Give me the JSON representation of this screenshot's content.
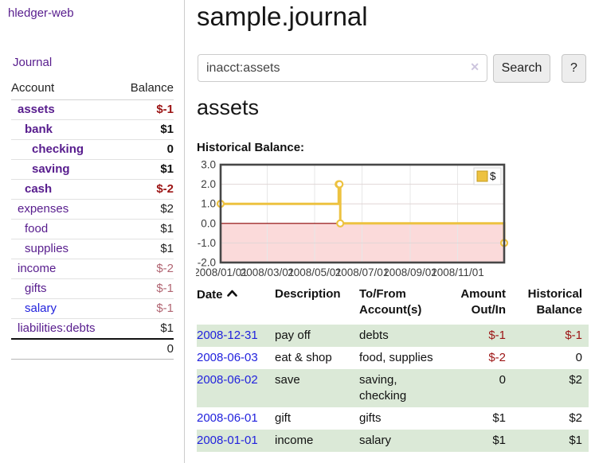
{
  "app": {
    "brand": "hledger-web"
  },
  "nav": {
    "journal_label": "Journal"
  },
  "sidebar": {
    "headers": {
      "account": "Account",
      "balance": "Balance"
    },
    "accounts": [
      {
        "name": "assets",
        "level": 1,
        "bold": true,
        "balance": "$-1",
        "balance_class": "neg-strong"
      },
      {
        "name": "bank",
        "level": 2,
        "bold": true,
        "balance": "$1",
        "balance_class": ""
      },
      {
        "name": "checking",
        "level": 3,
        "bold": true,
        "balance": "0",
        "balance_class": ""
      },
      {
        "name": "saving",
        "level": 3,
        "bold": true,
        "balance": "$1",
        "balance_class": ""
      },
      {
        "name": "cash",
        "level": 2,
        "bold": true,
        "balance": "$-2",
        "balance_class": "neg-strong"
      },
      {
        "name": "expenses",
        "level": 1,
        "bold": false,
        "balance": "$2",
        "balance_class": ""
      },
      {
        "name": "food",
        "level": 2,
        "bold": false,
        "balance": "$1",
        "balance_class": ""
      },
      {
        "name": "supplies",
        "level": 2,
        "bold": false,
        "balance": "$1",
        "balance_class": ""
      },
      {
        "name": "income",
        "level": 1,
        "bold": false,
        "balance": "$-2",
        "balance_class": "neg-muted"
      },
      {
        "name": "gifts",
        "level": 2,
        "bold": false,
        "balance": "$-1",
        "balance_class": "neg-muted"
      },
      {
        "name": "salary",
        "level": 2,
        "bold": false,
        "balance": "$-1",
        "balance_class": "neg-muted",
        "link_class": "blue"
      },
      {
        "name": "liabilities:debts",
        "level": 1,
        "bold": false,
        "balance": "$1",
        "balance_class": ""
      }
    ],
    "total": "0"
  },
  "header": {
    "title": "sample.journal"
  },
  "search": {
    "value": "inacct:assets",
    "clear_icon": "✕",
    "search_button": "Search",
    "help_button": "?"
  },
  "account_view": {
    "heading": "assets",
    "chart_title": "Historical Balance:"
  },
  "chart_data": {
    "type": "line",
    "step": true,
    "title": "Historical Balance",
    "xlim": [
      "2008/01/01",
      "2008/12/31"
    ],
    "ylim": [
      -2,
      3
    ],
    "x_ticks": [
      "2008/01/01",
      "2008/03/01",
      "2008/05/01",
      "2008/07/01",
      "2008/09/01",
      "2008/11/01"
    ],
    "y_ticks": [
      3.0,
      2.0,
      1.0,
      0.0,
      -1.0,
      -2.0
    ],
    "grid_y": [
      2,
      1,
      -1
    ],
    "series": [
      {
        "name": "$",
        "color": "#edc240",
        "marker_fill": "#ffffff",
        "points": [
          [
            "2008/01/01",
            1
          ],
          [
            "2008/06/01",
            2
          ],
          [
            "2008/06/02",
            2
          ],
          [
            "2008/06/03",
            0
          ],
          [
            "2008/12/31",
            -1
          ]
        ]
      }
    ],
    "legend": [
      {
        "label": "$",
        "color": "#edc240"
      }
    ],
    "legend_position": "top-right",
    "negative_region_fill": "#fbdada",
    "zero_line_color": "#8b0000",
    "grid": true
  },
  "register": {
    "headers": {
      "date": "Date",
      "date_sort_icon": "chevron-up",
      "description": "Description",
      "tofrom": "To/From Account(s)",
      "amount": "Amount Out/In",
      "balance": "Historical Balance"
    },
    "rows": [
      {
        "date": "2008-12-31",
        "description": "pay off",
        "accounts": "debts",
        "amount": "$-1",
        "amount_class": "neg",
        "balance": "$-1",
        "balance_class": "neg"
      },
      {
        "date": "2008-06-03",
        "description": "eat & shop",
        "accounts": "food, supplies",
        "amount": "$-2",
        "amount_class": "neg",
        "balance": "0",
        "balance_class": ""
      },
      {
        "date": "2008-06-02",
        "description": "save",
        "accounts": "saving, checking",
        "amount": "0",
        "amount_class": "",
        "balance": "$2",
        "balance_class": ""
      },
      {
        "date": "2008-06-01",
        "description": "gift",
        "accounts": "gifts",
        "amount": "$1",
        "amount_class": "",
        "balance": "$2",
        "balance_class": ""
      },
      {
        "date": "2008-01-01",
        "description": "income",
        "accounts": "salary",
        "amount": "$1",
        "amount_class": "",
        "balance": "$1",
        "balance_class": ""
      }
    ]
  }
}
